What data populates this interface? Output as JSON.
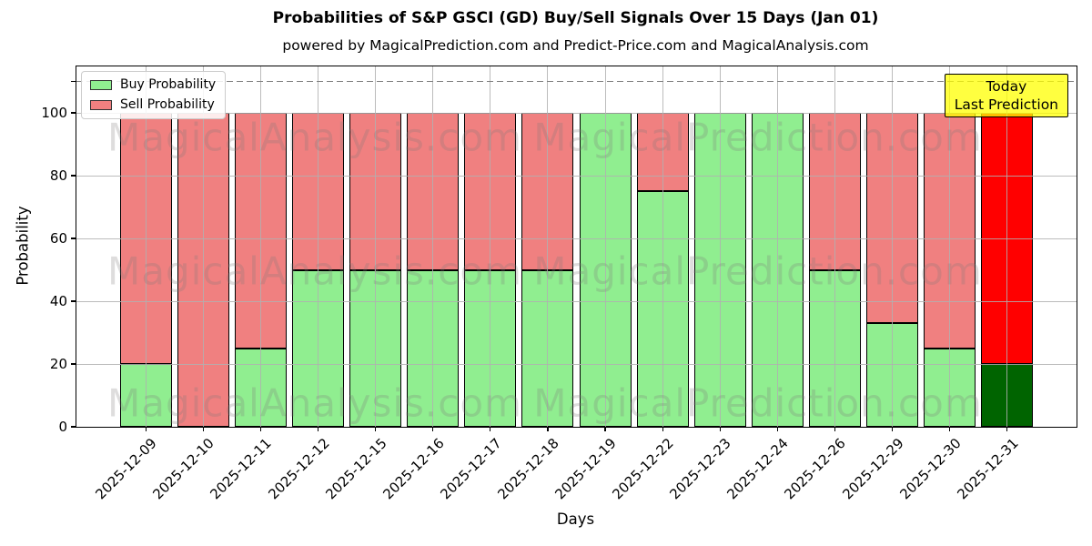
{
  "title": "Probabilities of S&P GSCI (GD) Buy/Sell Signals Over 15 Days (Jan 01)",
  "subtitle": "powered by MagicalPrediction.com and Predict-Price.com and MagicalAnalysis.com",
  "legend": {
    "buy_label": "Buy Probability",
    "sell_label": "Sell Probability"
  },
  "annotation_box": {
    "line1": "Today",
    "line2": "Last Prediction"
  },
  "axes": {
    "xlabel": "Days",
    "ylabel": "Probability",
    "yticks": [
      0,
      20,
      40,
      60,
      80,
      100
    ],
    "extra_tick": 110
  },
  "watermarks": [
    "MagicalAnalysis.com",
    "MagicalPrediction.com"
  ],
  "chart_data": {
    "type": "bar",
    "stacked": true,
    "title": "Probabilities of S&P GSCI (GD) Buy/Sell Signals Over 15 Days (Jan 01)",
    "xlabel": "Days",
    "ylabel": "Probability",
    "ylim": [
      0,
      114.8
    ],
    "grid": true,
    "legend_position": "upper left",
    "dashed_line_y": 110,
    "categories": [
      "2025-12-09",
      "2025-12-10",
      "2025-12-11",
      "2025-12-12",
      "2025-12-15",
      "2025-12-16",
      "2025-12-17",
      "2025-12-18",
      "2025-12-19",
      "2025-12-22",
      "2025-12-23",
      "2025-12-24",
      "2025-12-26",
      "2025-12-29",
      "2025-12-30",
      "2025-12-31"
    ],
    "series": [
      {
        "name": "Buy Probability",
        "color": "#90EE90",
        "values": [
          20,
          0,
          25,
          50,
          50,
          50,
          50,
          50,
          100,
          75,
          100,
          100,
          50,
          33,
          25,
          20
        ]
      },
      {
        "name": "Sell Probability",
        "color": "#F08080",
        "values": [
          80,
          100,
          75,
          50,
          50,
          50,
          50,
          50,
          0,
          25,
          0,
          0,
          50,
          67,
          75,
          80
        ]
      }
    ],
    "today_index": 15,
    "today_colors": {
      "buy": "#006400",
      "sell": "#FF0000"
    },
    "colors": {
      "buy": "#90EE90",
      "sell": "#F08080",
      "today_buy": "#006400",
      "today_sell": "#FF0000",
      "annotation_bg": "#FFFF00",
      "dashed_line": "#7f7f7f",
      "grid": "#b0b0b0",
      "watermark": "#7d7676"
    }
  }
}
